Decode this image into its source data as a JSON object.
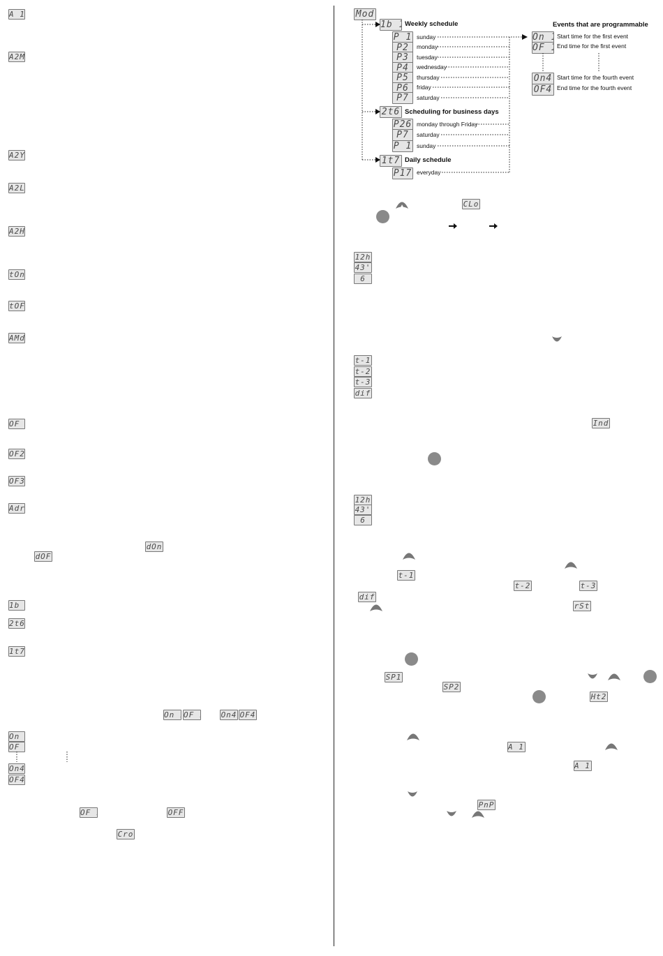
{
  "left_codes": [
    "A 1t",
    "A2M",
    "A2Y",
    "A2L",
    "A2H",
    "tOn",
    "tOF",
    "AMd",
    "OF 1",
    "OF2",
    "OF3",
    "Adr",
    "dOn",
    "dOF",
    "1b 1",
    "2t6",
    "1t7",
    "On 1",
    "OF 1",
    "On4",
    "OF4",
    "On 1",
    "OF 1",
    "On4",
    "OF4",
    "OF 1",
    "OFF",
    "Cro"
  ],
  "diagram": {
    "root": "Mod",
    "groups": [
      {
        "code": "1b 1",
        "title": "Weekly schedule",
        "rows": [
          {
            "code": "P 1",
            "label": "sunday"
          },
          {
            "code": "P2",
            "label": "monday"
          },
          {
            "code": "P3",
            "label": "tuesday"
          },
          {
            "code": "P4",
            "label": "wednesday"
          },
          {
            "code": "P5",
            "label": "thursday"
          },
          {
            "code": "P6",
            "label": "friday"
          },
          {
            "code": "P7",
            "label": "saturday"
          }
        ]
      },
      {
        "code": "2t6",
        "title": "Scheduling for business days",
        "rows": [
          {
            "code": "P26",
            "label": "monday through Friday"
          },
          {
            "code": "P7",
            "label": "saturday"
          },
          {
            "code": "P 1",
            "label": "sunday"
          }
        ]
      },
      {
        "code": "1t7",
        "title": "Daily schedule",
        "rows": [
          {
            "code": "P17",
            "label": "everyday"
          }
        ]
      }
    ],
    "events": {
      "title": "Events that are programmable",
      "rows": [
        {
          "code": "On 1",
          "label": "Start time for the first event"
        },
        {
          "code": "OF 1",
          "label": "End time for the first event"
        },
        {
          "code": "On4",
          "label": "Start time for the fourth event"
        },
        {
          "code": "OF4",
          "label": "End time for the fourth event"
        }
      ]
    }
  },
  "right_codes": [
    "CLo",
    "12h",
    "43'",
    "6",
    "t-1",
    "t-2",
    "t-3",
    "dif",
    "Ind",
    "12h",
    "43'",
    "6",
    "t-1",
    "t-2",
    "t-3",
    "dif",
    "rSt",
    "SP1",
    "SP2",
    "Ht2",
    "A 1t",
    "A 1t",
    "PnP"
  ]
}
